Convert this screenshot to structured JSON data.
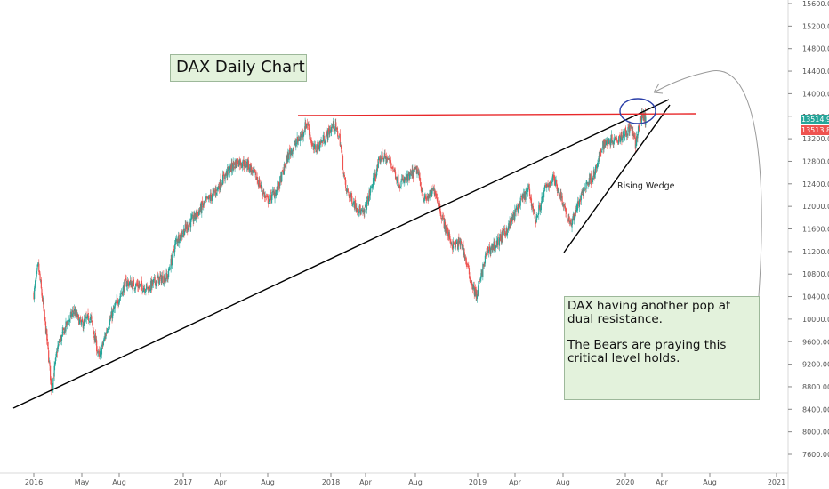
{
  "chart_data": {
    "type": "candlestick",
    "title": "DAX Daily Chart",
    "x_ticks": [
      "2016",
      "May",
      "Aug",
      "2017",
      "Apr",
      "Aug",
      "2018",
      "Apr",
      "Aug",
      "2019",
      "Apr",
      "Aug",
      "2020",
      "Apr",
      "Aug",
      "2021"
    ],
    "y_ticks": [
      7600,
      8000,
      8400,
      8800,
      9200,
      9600,
      10000,
      10400,
      10800,
      11200,
      11600,
      12000,
      12400,
      12800,
      13200,
      13600,
      14000,
      14400,
      14800,
      15200,
      15600
    ],
    "ylim": [
      7400,
      15650
    ],
    "price_path": [
      {
        "x": 2016.0,
        "y": 10450
      },
      {
        "x": 2016.03,
        "y": 10950
      },
      {
        "x": 2016.06,
        "y": 10300
      },
      {
        "x": 2016.09,
        "y": 9600
      },
      {
        "x": 2016.12,
        "y": 8750
      },
      {
        "x": 2016.16,
        "y": 9500
      },
      {
        "x": 2016.22,
        "y": 9900
      },
      {
        "x": 2016.27,
        "y": 10150
      },
      {
        "x": 2016.32,
        "y": 9900
      },
      {
        "x": 2016.38,
        "y": 10050
      },
      {
        "x": 2016.44,
        "y": 9300
      },
      {
        "x": 2016.5,
        "y": 9900
      },
      {
        "x": 2016.56,
        "y": 10300
      },
      {
        "x": 2016.62,
        "y": 10650
      },
      {
        "x": 2016.7,
        "y": 10600
      },
      {
        "x": 2016.77,
        "y": 10550
      },
      {
        "x": 2016.83,
        "y": 10700
      },
      {
        "x": 2016.9,
        "y": 10750
      },
      {
        "x": 2016.96,
        "y": 11400
      },
      {
        "x": 2017.02,
        "y": 11600
      },
      {
        "x": 2017.08,
        "y": 11800
      },
      {
        "x": 2017.15,
        "y": 12050
      },
      {
        "x": 2017.22,
        "y": 12250
      },
      {
        "x": 2017.3,
        "y": 12600
      },
      {
        "x": 2017.37,
        "y": 12800
      },
      {
        "x": 2017.44,
        "y": 12750
      },
      {
        "x": 2017.5,
        "y": 12500
      },
      {
        "x": 2017.57,
        "y": 12100
      },
      {
        "x": 2017.64,
        "y": 12300
      },
      {
        "x": 2017.72,
        "y": 12950
      },
      {
        "x": 2017.8,
        "y": 13250
      },
      {
        "x": 2017.84,
        "y": 13500
      },
      {
        "x": 2017.88,
        "y": 13000
      },
      {
        "x": 2017.94,
        "y": 13150
      },
      {
        "x": 2018.02,
        "y": 13450
      },
      {
        "x": 2018.06,
        "y": 13200
      },
      {
        "x": 2018.1,
        "y": 12300
      },
      {
        "x": 2018.17,
        "y": 12000
      },
      {
        "x": 2018.22,
        "y": 11850
      },
      {
        "x": 2018.28,
        "y": 12400
      },
      {
        "x": 2018.34,
        "y": 12900
      },
      {
        "x": 2018.4,
        "y": 12800
      },
      {
        "x": 2018.46,
        "y": 12400
      },
      {
        "x": 2018.52,
        "y": 12500
      },
      {
        "x": 2018.58,
        "y": 12650
      },
      {
        "x": 2018.63,
        "y": 12100
      },
      {
        "x": 2018.7,
        "y": 12300
      },
      {
        "x": 2018.76,
        "y": 11700
      },
      {
        "x": 2018.82,
        "y": 11300
      },
      {
        "x": 2018.88,
        "y": 11350
      },
      {
        "x": 2018.94,
        "y": 10700
      },
      {
        "x": 2018.98,
        "y": 10400
      },
      {
        "x": 2019.05,
        "y": 11200
      },
      {
        "x": 2019.12,
        "y": 11350
      },
      {
        "x": 2019.2,
        "y": 11650
      },
      {
        "x": 2019.27,
        "y": 12050
      },
      {
        "x": 2019.33,
        "y": 12300
      },
      {
        "x": 2019.38,
        "y": 11750
      },
      {
        "x": 2019.44,
        "y": 12300
      },
      {
        "x": 2019.5,
        "y": 12500
      },
      {
        "x": 2019.56,
        "y": 12100
      },
      {
        "x": 2019.61,
        "y": 11650
      },
      {
        "x": 2019.66,
        "y": 12000
      },
      {
        "x": 2019.72,
        "y": 12400
      },
      {
        "x": 2019.78,
        "y": 12600
      },
      {
        "x": 2019.83,
        "y": 13100
      },
      {
        "x": 2019.9,
        "y": 13200
      },
      {
        "x": 2019.96,
        "y": 13250
      },
      {
        "x": 2020.02,
        "y": 13400
      },
      {
        "x": 2020.05,
        "y": 13100
      },
      {
        "x": 2020.08,
        "y": 13500
      },
      {
        "x": 2020.1,
        "y": 13650
      },
      {
        "x": 2020.12,
        "y": 13500
      }
    ]
  },
  "annotations": {
    "title_box": "DAX Daily Chart",
    "note_line1": "DAX having another pop at dual resistance.",
    "note_line2": "The Bears are praying this critical level holds.",
    "wedge_label": "Rising Wedge"
  },
  "price_tags": {
    "last": "13514.90",
    "prev": "13513.81"
  },
  "colors": {
    "up": "#26a69a",
    "down": "#ef5350",
    "resistance": "#e8282a",
    "trendline": "#000000",
    "ellipse": "#2b3fa8",
    "arrow": "#9a9a9a",
    "note_bg": "#e3f2dc"
  }
}
